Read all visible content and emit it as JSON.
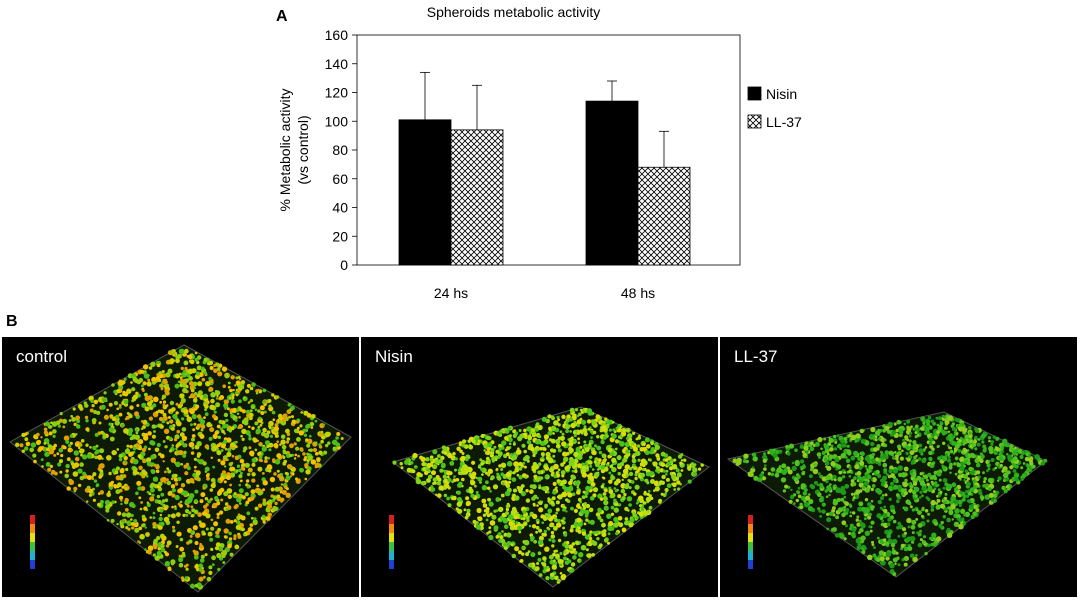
{
  "panel_a_label": "A",
  "panel_b_label": "B",
  "chart_data": {
    "type": "bar",
    "title": "Spheroids metabolic activity",
    "ylabel": "% Metabolic activity (vs control)",
    "ylabel_lines": [
      "% Metabolic activity",
      "(vs control)"
    ],
    "xlabel": "",
    "categories": [
      "24 hs",
      "48 hs"
    ],
    "series": [
      {
        "name": "Nisin",
        "values": [
          101,
          114
        ],
        "errors": [
          33,
          14
        ],
        "pattern": "solid-black"
      },
      {
        "name": "LL-37",
        "values": [
          94,
          68
        ],
        "errors": [
          31,
          25
        ],
        "pattern": "crosshatch"
      }
    ],
    "ylim": [
      0,
      160
    ],
    "yticks": [
      0,
      20,
      40,
      60,
      80,
      100,
      120,
      140,
      160
    ],
    "grid": false,
    "legend": "right"
  },
  "images": [
    {
      "label": "control",
      "palette": [
        "#f2c400",
        "#c8d200",
        "#8fcf10",
        "#4fbd1a",
        "#e0a000"
      ],
      "density": 0.62
    },
    {
      "label": "Nisin",
      "palette": [
        "#b8e010",
        "#7fd21a",
        "#4cc21c",
        "#d8dc08"
      ],
      "density": 0.55
    },
    {
      "label": "LL-37",
      "palette": [
        "#2fb01c",
        "#53c21e",
        "#1e9a18",
        "#8fce20"
      ],
      "density": 0.5
    }
  ]
}
